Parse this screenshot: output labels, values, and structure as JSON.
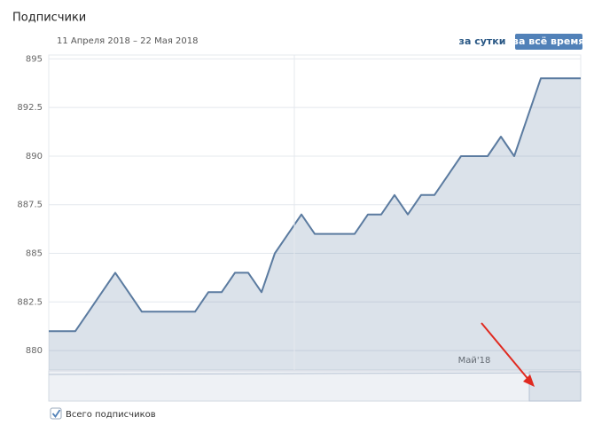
{
  "chart_data": {
    "type": "area",
    "title": "Подписчики",
    "subtitle": "11 Апреля 2018 – 22 Мая 2018",
    "buttons": [
      "за сутки",
      "за всё время"
    ],
    "categories": [
      null,
      null,
      null,
      null,
      null,
      null,
      null,
      null,
      null,
      null,
      null,
      null,
      null,
      null,
      null,
      null,
      null,
      null,
      null,
      null,
      null,
      null,
      null,
      null,
      null,
      null,
      null,
      null,
      null,
      null,
      null,
      null,
      "Май'18",
      null,
      null,
      null,
      null,
      null,
      null,
      null,
      null
    ],
    "series": [
      {
        "name": "Всего подписчиков",
        "color": "#5b7ba0",
        "values": [
          881,
          881,
          881,
          882,
          883,
          884,
          883,
          882,
          882,
          882,
          882,
          882,
          883,
          883,
          884,
          884,
          883,
          885,
          886,
          887,
          886,
          886,
          886,
          886,
          887,
          887,
          888,
          887,
          888,
          888,
          889,
          890,
          890,
          890,
          891,
          890,
          892,
          894,
          894,
          894,
          894
        ]
      }
    ],
    "ylim": [
      879,
      895.2
    ],
    "yticks": [
      880,
      882.5,
      885,
      887.5,
      890,
      892.5,
      895
    ],
    "grid": true
  }
}
